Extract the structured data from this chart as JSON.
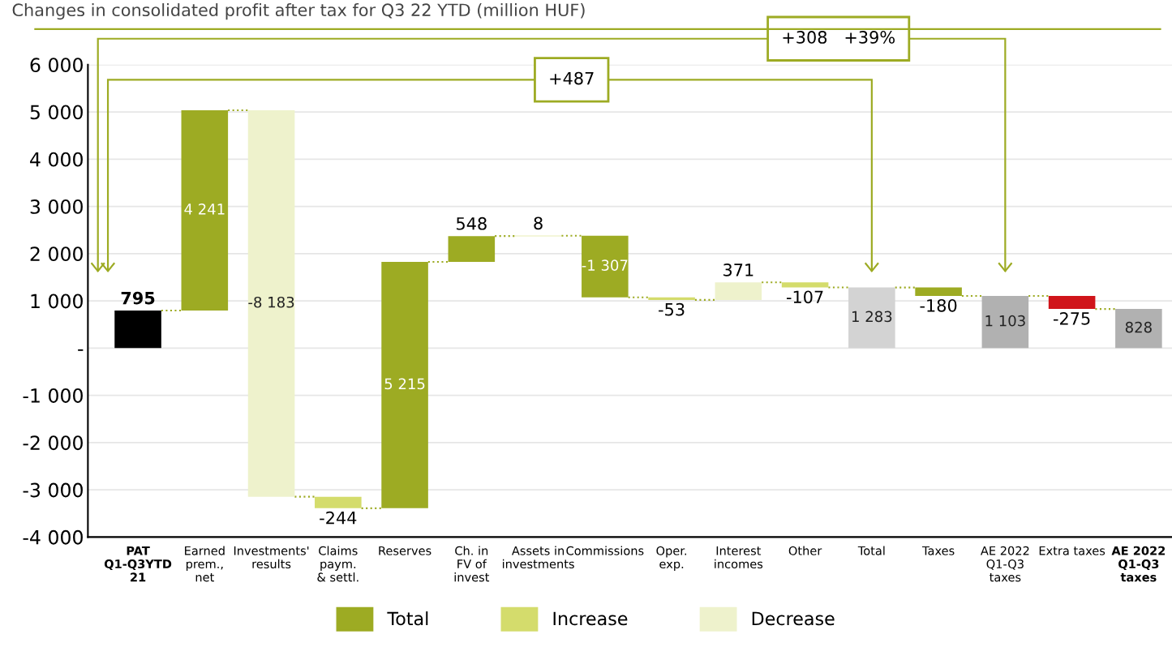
{
  "chart_data": {
    "type": "bar",
    "title": "Changes in consolidated profit after tax for Q3 22 YTD (million HUF)",
    "categories": [
      "PAT\nQ1-Q3YTD\n21",
      "Earned\nprem.,\nnet",
      "Investments'\nresults",
      "Claims\npaym.\n& settl.",
      "Reserves",
      "Ch. in\nFV of\ninvest",
      "Assets in\ninvestments",
      "Commissions",
      "Oper.\nexp.",
      "Interest\nincomes",
      "Other",
      "Total",
      "Taxes",
      "AE 2022\nQ1-Q3\ntaxes",
      "Extra taxes",
      "AE 2022\nQ1-Q3\ntaxes"
    ],
    "series": [
      {
        "name": "Total",
        "color": "#9dab23",
        "base": [
          null,
          795,
          null,
          null,
          -3391,
          1824,
          null,
          2380,
          null,
          null,
          null,
          null,
          1283,
          null,
          null,
          null
        ],
        "values": [
          null,
          4241,
          null,
          null,
          5215,
          548,
          null,
          -1307,
          null,
          null,
          null,
          null,
          -180,
          null,
          null,
          null
        ],
        "value_labels": [
          null,
          "4 241",
          null,
          null,
          "5 215",
          "548",
          null,
          "-1 307",
          null,
          null,
          null,
          null,
          "-180",
          null,
          null,
          null
        ]
      },
      {
        "name": "Increase",
        "color": "#d4dc6c",
        "base": [
          null,
          null,
          null,
          -3147,
          null,
          null,
          2372,
          null,
          1073,
          null,
          1391,
          null,
          null,
          null,
          null,
          null
        ],
        "values": [
          null,
          null,
          null,
          -244,
          null,
          null,
          8,
          null,
          -53,
          null,
          -107,
          null,
          null,
          null,
          null,
          null
        ],
        "value_labels": [
          null,
          null,
          null,
          "-244",
          null,
          null,
          "8",
          null,
          "-53",
          null,
          "-107",
          null,
          null,
          null,
          null,
          null
        ]
      },
      {
        "name": "Decrease",
        "color": "#eef2cc",
        "base": [
          null,
          null,
          5036,
          null,
          null,
          null,
          null,
          null,
          null,
          1020,
          null,
          null,
          null,
          null,
          null,
          null
        ],
        "values": [
          null,
          null,
          -8183,
          null,
          null,
          null,
          null,
          null,
          null,
          371,
          null,
          null,
          null,
          null,
          null,
          null
        ],
        "value_labels": [
          null,
          null,
          "-8 183",
          null,
          null,
          null,
          null,
          null,
          null,
          "371",
          null,
          null,
          null,
          null,
          null,
          null
        ]
      },
      {
        "base": [
          0,
          null,
          null,
          null,
          null,
          null,
          null,
          null,
          null,
          null,
          null,
          0,
          null,
          0,
          1103,
          0
        ],
        "colors": [
          "#000000",
          null,
          null,
          null,
          null,
          null,
          null,
          null,
          null,
          null,
          null,
          "#d3d3d3",
          null,
          "#b1b1b1",
          "#d0141a",
          "#b1b1b1"
        ],
        "values": [
          795,
          null,
          null,
          null,
          null,
          null,
          null,
          null,
          null,
          null,
          null,
          1283,
          null,
          1103,
          -275,
          828
        ],
        "value_labels": [
          "795",
          null,
          null,
          null,
          null,
          null,
          null,
          null,
          null,
          null,
          null,
          "1 283",
          null,
          "1 103",
          "-275",
          "828"
        ]
      }
    ],
    "ylim": [
      -4000,
      6000
    ],
    "yticks": [
      {
        "value": -4000,
        "label": "-4 000"
      },
      {
        "value": -3000,
        "label": "-3 000"
      },
      {
        "value": -2000,
        "label": "-2 000"
      },
      {
        "value": -1000,
        "label": "-1 000"
      },
      {
        "value": 0,
        "label": "-"
      },
      {
        "value": 1000,
        "label": "1 000"
      },
      {
        "value": 2000,
        "label": "2 000"
      },
      {
        "value": 3000,
        "label": "3 000"
      },
      {
        "value": 4000,
        "label": "4 000"
      },
      {
        "value": 5000,
        "label": "5 000"
      },
      {
        "value": 6000,
        "label": "6 000"
      }
    ],
    "grid": "y",
    "legend": "bottom",
    "annotations": [
      "+487",
      "+308   +39%"
    ]
  }
}
